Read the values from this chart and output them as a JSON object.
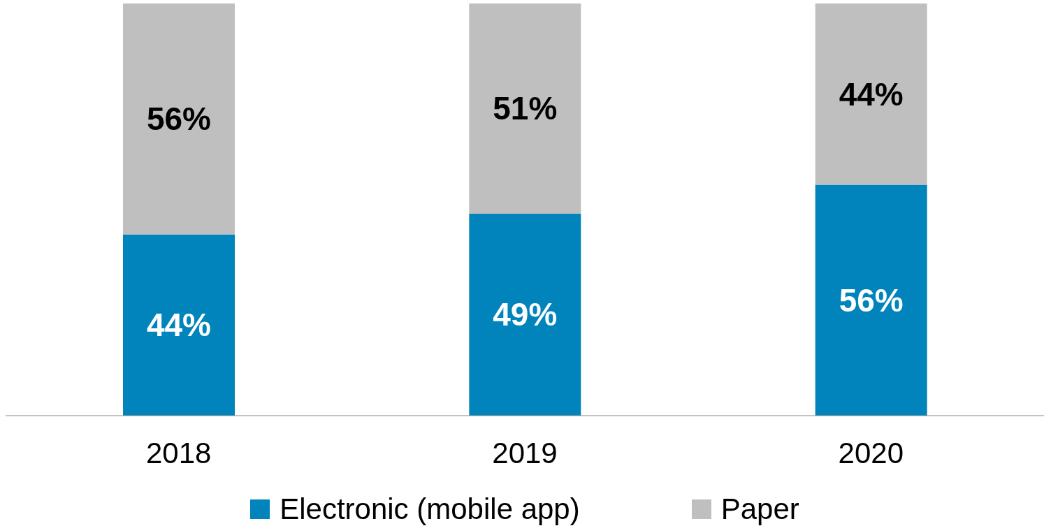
{
  "chart_data": {
    "type": "bar",
    "stacked": true,
    "categories": [
      "2018",
      "2019",
      "2020"
    ],
    "series": [
      {
        "name": "Electronic (mobile app)",
        "color": "#0084bb",
        "values": [
          44,
          49,
          56
        ],
        "value_labels": [
          "44%",
          "49%",
          "56%"
        ]
      },
      {
        "name": "Paper",
        "color": "#bfbfbf",
        "values": [
          56,
          51,
          44
        ],
        "value_labels": [
          "56%",
          "51%",
          "44%"
        ]
      }
    ],
    "ylim": [
      0,
      100
    ],
    "tick_labels": "x",
    "grid": false,
    "legend": "bottom"
  }
}
